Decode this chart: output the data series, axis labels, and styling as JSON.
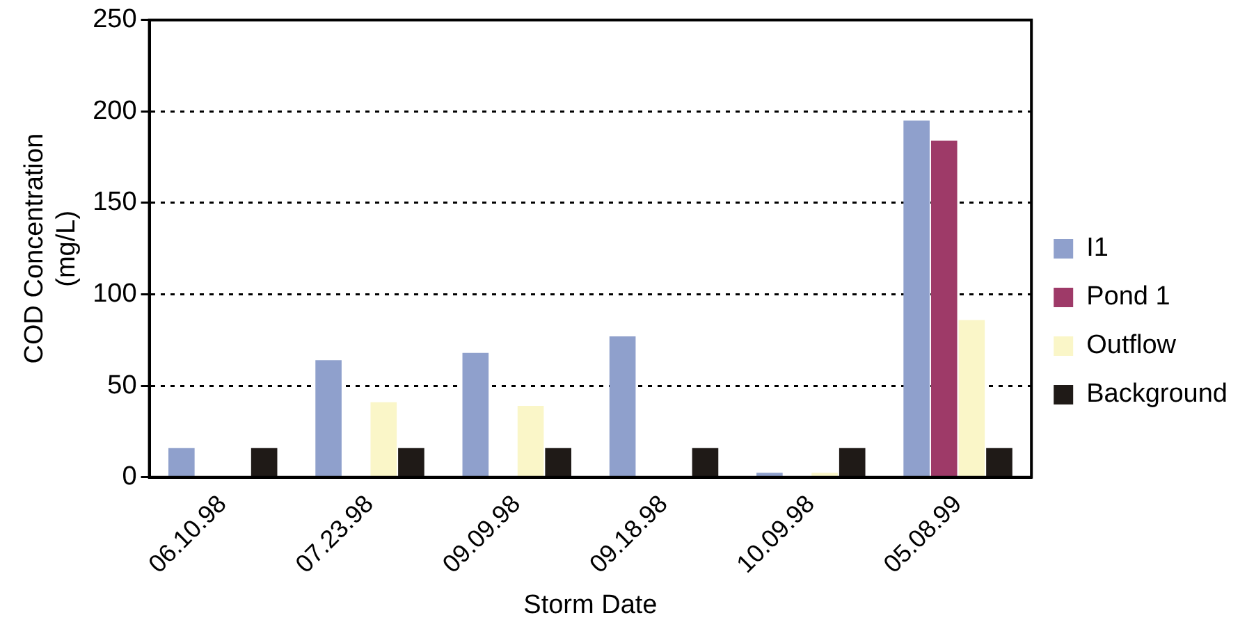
{
  "chart_data": {
    "type": "bar",
    "xlabel": "Storm Date",
    "ylabel": "COD Concentration (mg/L)",
    "categories": [
      "06.10.98",
      "07.23.98",
      "09.09.98",
      "09.18.98",
      "10.09.98",
      "05.08.99"
    ],
    "series": [
      {
        "name": "I1",
        "color": "#8fa0cc",
        "values": [
          16,
          64,
          68,
          77,
          2.5,
          195
        ]
      },
      {
        "name": "Pond 1",
        "color": "#9e3a68",
        "values": [
          null,
          null,
          null,
          null,
          null,
          184
        ]
      },
      {
        "name": "Outflow",
        "color": "#faf6c8",
        "values": [
          null,
          41,
          39,
          null,
          2.5,
          86
        ]
      },
      {
        "name": "Background",
        "color": "#1f1a17",
        "values": [
          16,
          16,
          16,
          16,
          16,
          16
        ]
      }
    ],
    "ylim": [
      0,
      250
    ],
    "yticks": [
      0,
      50,
      100,
      150,
      200,
      250
    ],
    "grid": "y",
    "legend": "right"
  }
}
